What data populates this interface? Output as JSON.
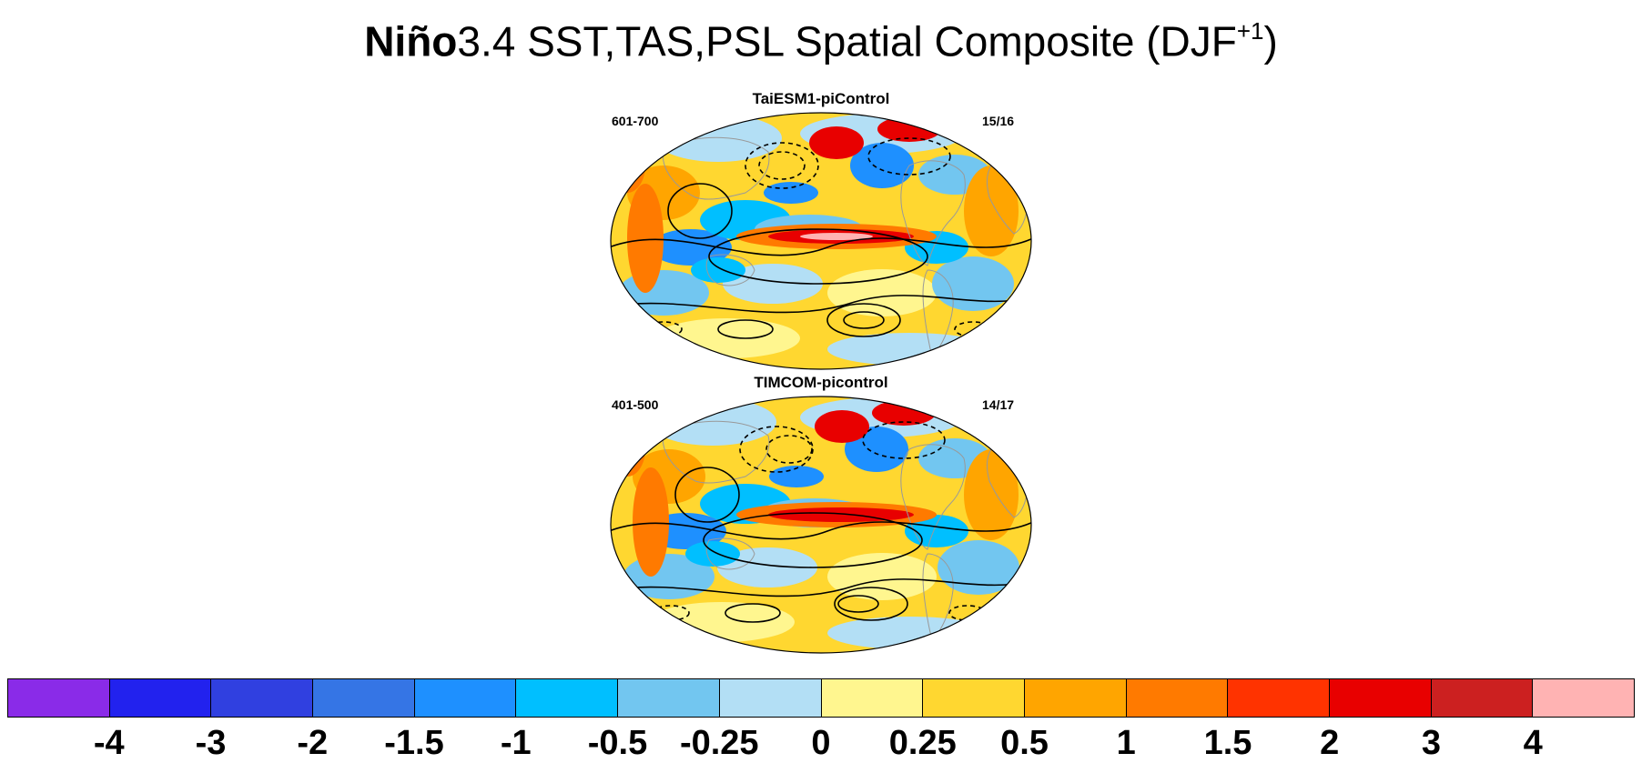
{
  "title": {
    "bold_part": "Niño",
    "rest": "3.4 SST,TAS,PSL Spatial Composite (DJF",
    "superscript": "+1",
    "close": ")"
  },
  "panels": [
    {
      "title": "TaiESM1-piControl",
      "years": "601-700",
      "count": "15/16"
    },
    {
      "title": "TIMCOM-picontrol",
      "years": "401-500",
      "count": "14/17"
    }
  ],
  "colorbar": {
    "colors": [
      "#8a2be8",
      "#2222ee",
      "#3040e0",
      "#3575e5",
      "#1e90ff",
      "#00bfff",
      "#72c6f0",
      "#b3dff5",
      "#fff68f",
      "#ffd730",
      "#ffa500",
      "#ff7a00",
      "#ff3300",
      "#e80000",
      "#cc2020",
      "#ffb3b3"
    ],
    "labels": [
      "-4",
      "-3",
      "-2",
      "-1.5",
      "-1",
      "-0.5",
      "-0.25",
      "0",
      "0.25",
      "0.5",
      "1",
      "1.5",
      "2",
      "3",
      "4"
    ]
  }
}
